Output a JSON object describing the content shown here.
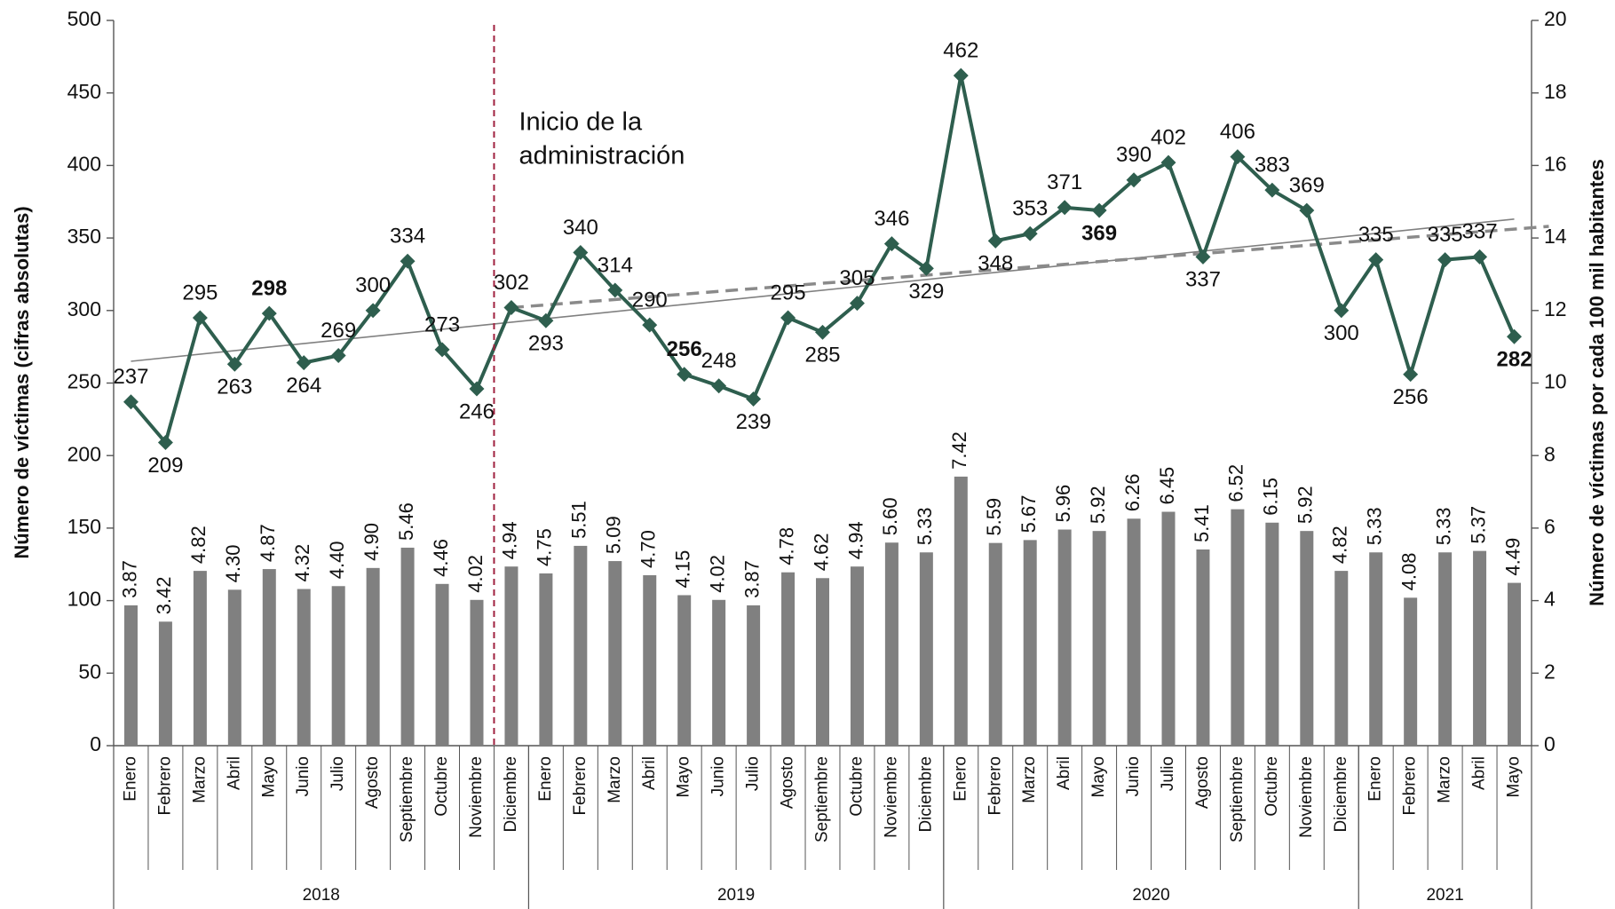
{
  "chart_data": {
    "type": "bar-line",
    "categories": [
      "Enero",
      "Febrero",
      "Marzo",
      "Abril",
      "Mayo",
      "Junio",
      "Julio",
      "Agosto",
      "Septiembre",
      "Octubre",
      "Noviembre",
      "Diciembre",
      "Enero",
      "Febrero",
      "Marzo",
      "Abril",
      "Mayo",
      "Junio",
      "Julio",
      "Agosto",
      "Septiembre",
      "Octubre",
      "Noviembre",
      "Diciembre",
      "Enero",
      "Febrero",
      "Marzo",
      "Abril",
      "Mayo",
      "Junio",
      "Julio",
      "Agosto",
      "Septiembre",
      "Octubre",
      "Noviembre",
      "Diciembre",
      "Enero",
      "Febrero",
      "Marzo",
      "Abril",
      "Mayo"
    ],
    "groups": [
      {
        "label": "2018",
        "size": 12
      },
      {
        "label": "2019",
        "size": 12
      },
      {
        "label": "2020",
        "size": 12
      },
      {
        "label": "2021",
        "size": 5
      }
    ],
    "y_label": "Número de víctimas (cifras absolutas)",
    "y2_label": "Número de víctimas por cada 100 mil habitantes",
    "ylim": [
      0,
      500
    ],
    "yticks": [
      0,
      50,
      100,
      150,
      200,
      250,
      300,
      350,
      400,
      450,
      500
    ],
    "y2lim": [
      0,
      20
    ],
    "y2ticks": [
      0,
      2,
      4,
      6,
      8,
      10,
      12,
      14,
      16,
      18,
      20
    ],
    "series": [
      {
        "kind": "bar",
        "axis": "y2",
        "color": "#808080",
        "values": [
          3.87,
          3.42,
          4.82,
          4.3,
          4.87,
          4.32,
          4.4,
          4.9,
          5.46,
          4.46,
          4.02,
          4.94,
          4.75,
          5.51,
          5.09,
          4.7,
          4.15,
          4.02,
          3.87,
          4.78,
          4.62,
          4.94,
          5.6,
          5.33,
          7.42,
          5.59,
          5.67,
          5.96,
          5.92,
          6.26,
          6.45,
          5.41,
          6.52,
          6.15,
          5.92,
          4.82,
          5.33,
          4.08,
          5.33,
          5.37,
          4.49
        ],
        "value_labels": [
          "3.87",
          "3.42",
          "4.82",
          "4.30",
          "4.87",
          "4.32",
          "4.40",
          "4.90",
          "5.46",
          "4.46",
          "4.02",
          "4.94",
          "4.75",
          "5.51",
          "5.09",
          "4.70",
          "4.15",
          "4.02",
          "3.87",
          "4.78",
          "4.62",
          "4.94",
          "5.60",
          "5.33",
          "7.42",
          "5.59",
          "5.67",
          "5.96",
          "5.92",
          "6.26",
          "6.45",
          "5.41",
          "6.52",
          "6.15",
          "5.92",
          "4.82",
          "5.33",
          "4.08",
          "5.33",
          "5.37",
          "4.49"
        ]
      },
      {
        "kind": "line",
        "color": "#2e5e4e",
        "highlight_color": "#b8915f",
        "highlight_indices": [
          4,
          16,
          28,
          40
        ],
        "values": [
          237,
          209,
          295,
          263,
          298,
          264,
          269,
          300,
          334,
          273,
          246,
          302,
          293,
          340,
          314,
          290,
          256,
          248,
          239,
          295,
          285,
          305,
          346,
          329,
          462,
          348,
          353,
          371,
          369,
          390,
          402,
          337,
          406,
          383,
          369,
          300,
          335,
          256,
          335,
          337,
          282
        ]
      }
    ],
    "trend_lines": [
      {
        "color": "#808080",
        "dashed": false,
        "x": [
          0,
          40
        ],
        "values": [
          265,
          363
        ]
      },
      {
        "color": "#8a8a8a",
        "dashed": true,
        "x": [
          11,
          41
        ],
        "values": [
          302,
          358
        ]
      }
    ],
    "annotation": {
      "lines": [
        "Inicio de la",
        "administración"
      ],
      "color": "#a0213f",
      "x": 10.5
    }
  }
}
